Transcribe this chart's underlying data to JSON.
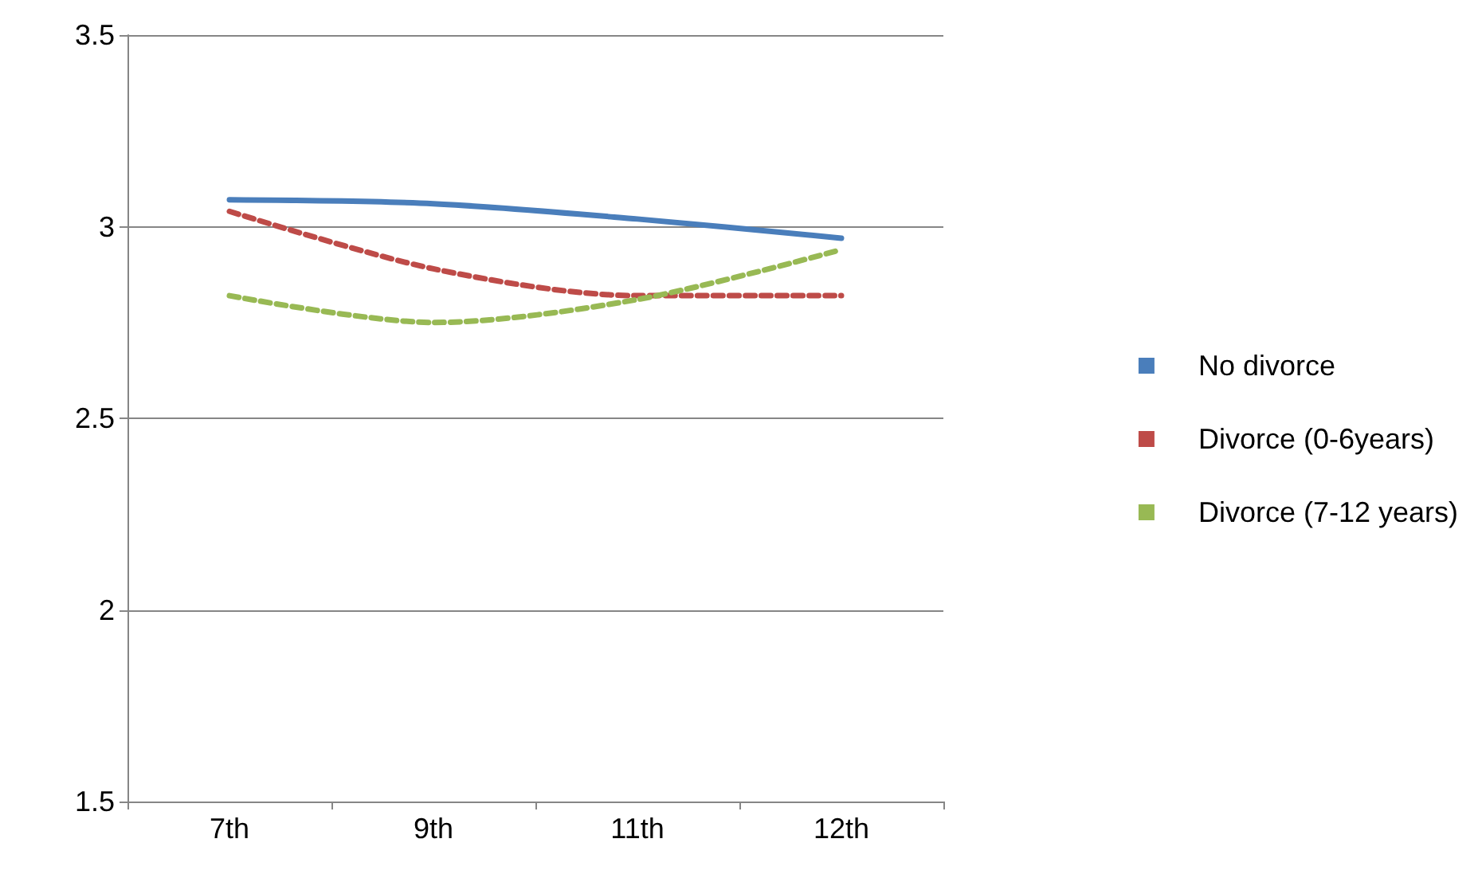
{
  "chart_data": {
    "type": "line",
    "categories": [
      "7th",
      "9th",
      "11th",
      "12th"
    ],
    "series": [
      {
        "name": "No divorce",
        "color": "#4a7ebb",
        "values": [
          3.07,
          3.06,
          3.02,
          2.97
        ],
        "line_style": "solid"
      },
      {
        "name": "Divorce (0-6years)",
        "color": "#be4b48",
        "values": [
          3.04,
          2.89,
          2.82,
          2.82
        ],
        "line_style": "dashed"
      },
      {
        "name": "Divorce (7-12 years)",
        "color": "#98b954",
        "values": [
          2.82,
          2.75,
          2.81,
          2.94
        ],
        "line_style": "dashed"
      }
    ],
    "ylim": [
      1.5,
      3.5
    ],
    "yticks": [
      1.5,
      2,
      2.5,
      3,
      3.5
    ],
    "grid": "y",
    "legend": "right",
    "marker": "none"
  }
}
